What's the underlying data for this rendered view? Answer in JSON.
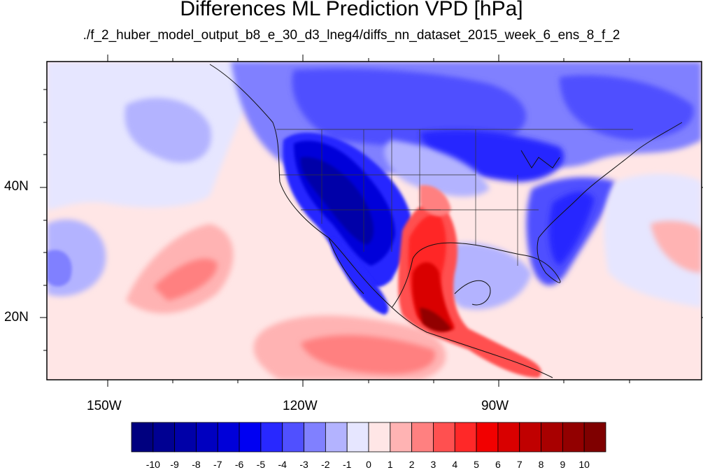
{
  "title": "Differences ML Prediction VPD [hPa]",
  "subtitle": "./f_2_huber_model_output_b8_e_30_d3_lneg4/diffs_nn_dataset_2015_week_6_ens_8_f_2",
  "map": {
    "projection": "cylindrical equidistant",
    "lon_range": [
      -160,
      -56
    ],
    "lat_range": [
      11,
      59
    ],
    "lon_tick_labels": [
      "150W",
      "120W",
      "90W"
    ],
    "lat_tick_labels": [
      "40N",
      "20N"
    ],
    "coastlines": true,
    "state_boundaries": true
  },
  "colorbar": {
    "labels": [
      "-10",
      "-9",
      "-8",
      "-7",
      "-6",
      "-5",
      "-4",
      "-3",
      "-2",
      "-1",
      "0",
      "1",
      "2",
      "3",
      "4",
      "5",
      "6",
      "7",
      "8",
      "9",
      "10"
    ],
    "colors": [
      "#00007f",
      "#000092",
      "#0000a8",
      "#0000c0",
      "#0000d9",
      "#0000f2",
      "#2828ff",
      "#5050ff",
      "#8080ff",
      "#b3b3ff",
      "#e6e6ff",
      "#ffe6e6",
      "#ffb3b3",
      "#ff8080",
      "#ff5050",
      "#ff2828",
      "#f20000",
      "#d90000",
      "#c00000",
      "#a80000",
      "#920000",
      "#7f0000"
    ]
  }
}
